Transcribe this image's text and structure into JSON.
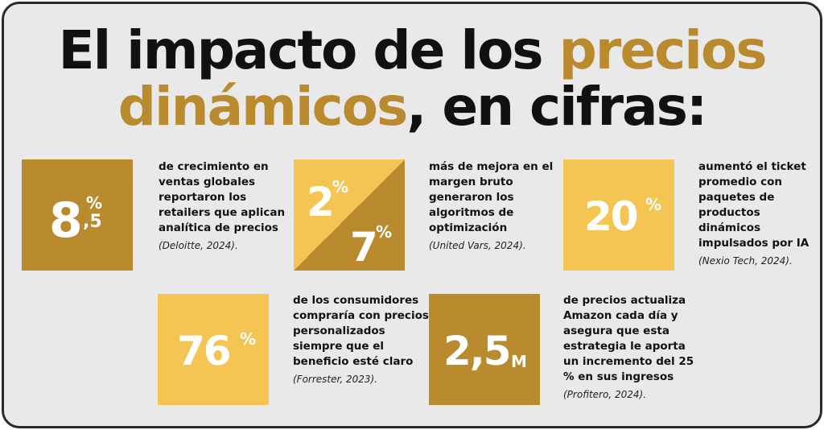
{
  "title": {
    "line1_plain": "El impacto de los ",
    "line1_accent": "precios",
    "line2_accent": "dinámicos",
    "line2_plain": ", en cifras:"
  },
  "colors": {
    "accent_dark": "#b98a2e",
    "accent_light": "#f4c553",
    "background": "#e9e9e9"
  },
  "stats": [
    {
      "big": "8",
      "small_top": "%",
      "small_bottom": ",5",
      "text": "de crecimiento en ventas globales reportaron los retailers que aplican analítica de precios",
      "source": "(Deloitte, 2024)."
    },
    {
      "big_a": "2",
      "sup_a": "%",
      "big_b": "7",
      "sup_b": "%",
      "text": "más de mejora en el margen bruto generaron los algoritmos de optimización",
      "source": "(United Vars, 2024)."
    },
    {
      "big": "20",
      "sup": "%",
      "text": "aumentó el ticket promedio con paquetes de productos dinámicos impulsados por IA",
      "source": "(Nexio Tech, 2024)."
    },
    {
      "big": "76",
      "sup": "%",
      "text": "de los consumidores compraría con precios personalizados siempre que el beneficio esté claro",
      "source": "(Forrester, 2023)."
    },
    {
      "big": "2,5",
      "sup": "M",
      "text": "de precios actualiza Amazon cada día y asegura que esta estrategia le aporta un incremento del 25 % en sus ingresos",
      "source": "(Profitero, 2024)."
    }
  ]
}
